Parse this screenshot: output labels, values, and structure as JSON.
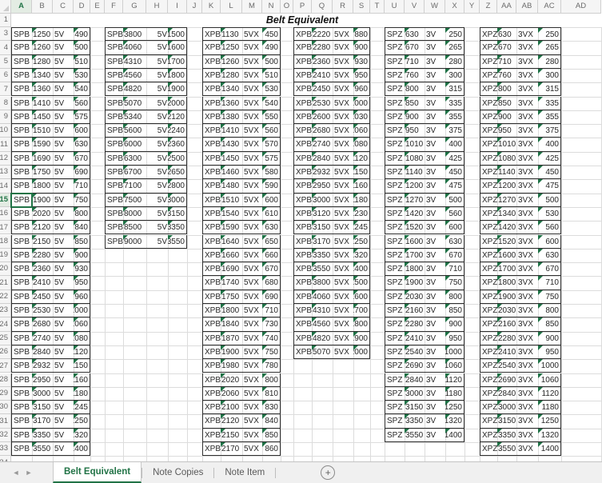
{
  "title": "Belt Equivalent",
  "columns": [
    "A",
    "B",
    "C",
    "D",
    "E",
    "F",
    "G",
    "H",
    "I",
    "J",
    "K",
    "L",
    "M",
    "N",
    "O",
    "P",
    "Q",
    "R",
    "S",
    "T",
    "U",
    "V",
    "W",
    "X",
    "Y",
    "Z",
    "AA",
    "AB",
    "AC",
    "AD"
  ],
  "rows": [
    1,
    3,
    4,
    5,
    6,
    7,
    8,
    9,
    10,
    11,
    12,
    13,
    14,
    15,
    16,
    17,
    18,
    19,
    20,
    21,
    22,
    23,
    24,
    25,
    26,
    27,
    28,
    29,
    30,
    31,
    32,
    33,
    34
  ],
  "selection": {
    "active_cell": "A15",
    "active_row": 15,
    "active_column": "A"
  },
  "blocks": [
    {
      "prefix": "SPB",
      "section": "5V",
      "col": "A",
      "rows": [
        [
          1250,
          490
        ],
        [
          1260,
          500
        ],
        [
          1280,
          510
        ],
        [
          1340,
          530
        ],
        [
          1360,
          540
        ],
        [
          1410,
          560
        ],
        [
          1450,
          575
        ],
        [
          1510,
          600
        ],
        [
          1590,
          630
        ],
        [
          1690,
          670
        ],
        [
          1750,
          690
        ],
        [
          1800,
          710
        ],
        [
          1900,
          750
        ],
        [
          2020,
          800
        ],
        [
          2120,
          840
        ],
        [
          2150,
          850
        ],
        [
          2280,
          900
        ],
        [
          2360,
          930
        ],
        [
          2410,
          950
        ],
        [
          2450,
          960
        ],
        [
          2530,
          1000
        ],
        [
          2680,
          1060
        ],
        [
          2740,
          1080
        ],
        [
          2840,
          1120
        ],
        [
          2932,
          1150
        ],
        [
          2950,
          1160
        ],
        [
          3000,
          1180
        ],
        [
          3150,
          1245
        ],
        [
          3170,
          1250
        ],
        [
          3350,
          1320
        ],
        [
          3550,
          1400
        ]
      ]
    },
    {
      "prefix": "SPB",
      "section": "5V",
      "col": "F",
      "rows": [
        [
          3800,
          1500
        ],
        [
          4060,
          1600
        ],
        [
          4310,
          1700
        ],
        [
          4560,
          1800
        ],
        [
          4820,
          1900
        ],
        [
          5070,
          2000
        ],
        [
          5340,
          2120
        ],
        [
          5600,
          2240
        ],
        [
          6000,
          2360
        ],
        [
          6300,
          2500
        ],
        [
          6700,
          2650
        ],
        [
          7100,
          2800
        ],
        [
          7500,
          3000
        ],
        [
          8000,
          3150
        ],
        [
          8500,
          3350
        ],
        [
          9000,
          3550
        ]
      ]
    },
    {
      "prefix": "XPB",
      "section": "5VX",
      "col": "K",
      "rows": [
        [
          1130,
          450
        ],
        [
          1250,
          490
        ],
        [
          1260,
          500
        ],
        [
          1280,
          510
        ],
        [
          1340,
          530
        ],
        [
          1360,
          540
        ],
        [
          1380,
          550
        ],
        [
          1410,
          560
        ],
        [
          1430,
          570
        ],
        [
          1450,
          575
        ],
        [
          1460,
          580
        ],
        [
          1480,
          590
        ],
        [
          1510,
          600
        ],
        [
          1540,
          610
        ],
        [
          1590,
          630
        ],
        [
          1640,
          650
        ],
        [
          1660,
          660
        ],
        [
          1690,
          670
        ],
        [
          1740,
          680
        ],
        [
          1750,
          690
        ],
        [
          1800,
          710
        ],
        [
          1840,
          730
        ],
        [
          1870,
          740
        ],
        [
          1900,
          750
        ],
        [
          1980,
          780
        ],
        [
          2020,
          800
        ],
        [
          2060,
          810
        ],
        [
          2100,
          830
        ],
        [
          2120,
          840
        ],
        [
          2150,
          850
        ],
        [
          2170,
          860
        ]
      ]
    },
    {
      "prefix": "XPB",
      "section": "5VX",
      "col": "P",
      "rows": [
        [
          2220,
          880
        ],
        [
          2280,
          900
        ],
        [
          2360,
          930
        ],
        [
          2410,
          950
        ],
        [
          2450,
          960
        ],
        [
          2530,
          1000
        ],
        [
          2600,
          1030
        ],
        [
          2680,
          1060
        ],
        [
          2740,
          1080
        ],
        [
          2840,
          1120
        ],
        [
          2932,
          1150
        ],
        [
          2950,
          1160
        ],
        [
          3000,
          1180
        ],
        [
          3120,
          1230
        ],
        [
          3150,
          1245
        ],
        [
          3170,
          1250
        ],
        [
          3350,
          1320
        ],
        [
          3550,
          1400
        ],
        [
          3800,
          1500
        ],
        [
          4060,
          1600
        ],
        [
          4310,
          1700
        ],
        [
          4560,
          1800
        ],
        [
          4820,
          1900
        ],
        [
          5070,
          2000
        ]
      ]
    },
    {
      "prefix": "SPZ",
      "section": "3V",
      "col": "U",
      "rows": [
        [
          630,
          250
        ],
        [
          670,
          265
        ],
        [
          710,
          280
        ],
        [
          760,
          300
        ],
        [
          800,
          315
        ],
        [
          850,
          335
        ],
        [
          900,
          355
        ],
        [
          950,
          375
        ],
        [
          1010,
          400
        ],
        [
          1080,
          425
        ],
        [
          1140,
          450
        ],
        [
          1200,
          475
        ],
        [
          1270,
          500
        ],
        [
          1420,
          560
        ],
        [
          1520,
          600
        ],
        [
          1600,
          630
        ],
        [
          1700,
          670
        ],
        [
          1800,
          710
        ],
        [
          1900,
          750
        ],
        [
          2030,
          800
        ],
        [
          2160,
          850
        ],
        [
          2280,
          900
        ],
        [
          2410,
          950
        ],
        [
          2540,
          1000
        ],
        [
          2690,
          1060
        ],
        [
          2840,
          1120
        ],
        [
          3000,
          1180
        ],
        [
          3150,
          1250
        ],
        [
          3350,
          1320
        ],
        [
          3550,
          1400
        ]
      ]
    },
    {
      "prefix": "XPZ",
      "section": "3VX",
      "col": "Z",
      "rows": [
        [
          630,
          250
        ],
        [
          670,
          265
        ],
        [
          710,
          280
        ],
        [
          760,
          300
        ],
        [
          800,
          315
        ],
        [
          850,
          335
        ],
        [
          900,
          355
        ],
        [
          950,
          375
        ],
        [
          1010,
          400
        ],
        [
          1080,
          425
        ],
        [
          1140,
          450
        ],
        [
          1200,
          475
        ],
        [
          1270,
          500
        ],
        [
          1340,
          530
        ],
        [
          1420,
          560
        ],
        [
          1520,
          600
        ],
        [
          1600,
          630
        ],
        [
          1700,
          670
        ],
        [
          1800,
          710
        ],
        [
          1900,
          750
        ],
        [
          2030,
          800
        ],
        [
          2160,
          850
        ],
        [
          2280,
          900
        ],
        [
          2410,
          950
        ],
        [
          2540,
          1000
        ],
        [
          2690,
          1060
        ],
        [
          2840,
          1120
        ],
        [
          3000,
          1180
        ],
        [
          3150,
          1250
        ],
        [
          3350,
          1320
        ],
        [
          3550,
          1400
        ]
      ]
    }
  ],
  "sheet_tabs": {
    "tabs": [
      "Belt Equivalent",
      "Note Copies",
      "Note Item"
    ],
    "active": "Belt Equivalent",
    "back_icon": "◄",
    "forward_icon": "►",
    "add_icon": "+"
  },
  "colors": {
    "accent_green": "#217346",
    "flag_green": "#1e7145",
    "gridline": "#dcdcdc",
    "block_border": "#2f2f2f",
    "header_bg": "#f5f5f5"
  }
}
